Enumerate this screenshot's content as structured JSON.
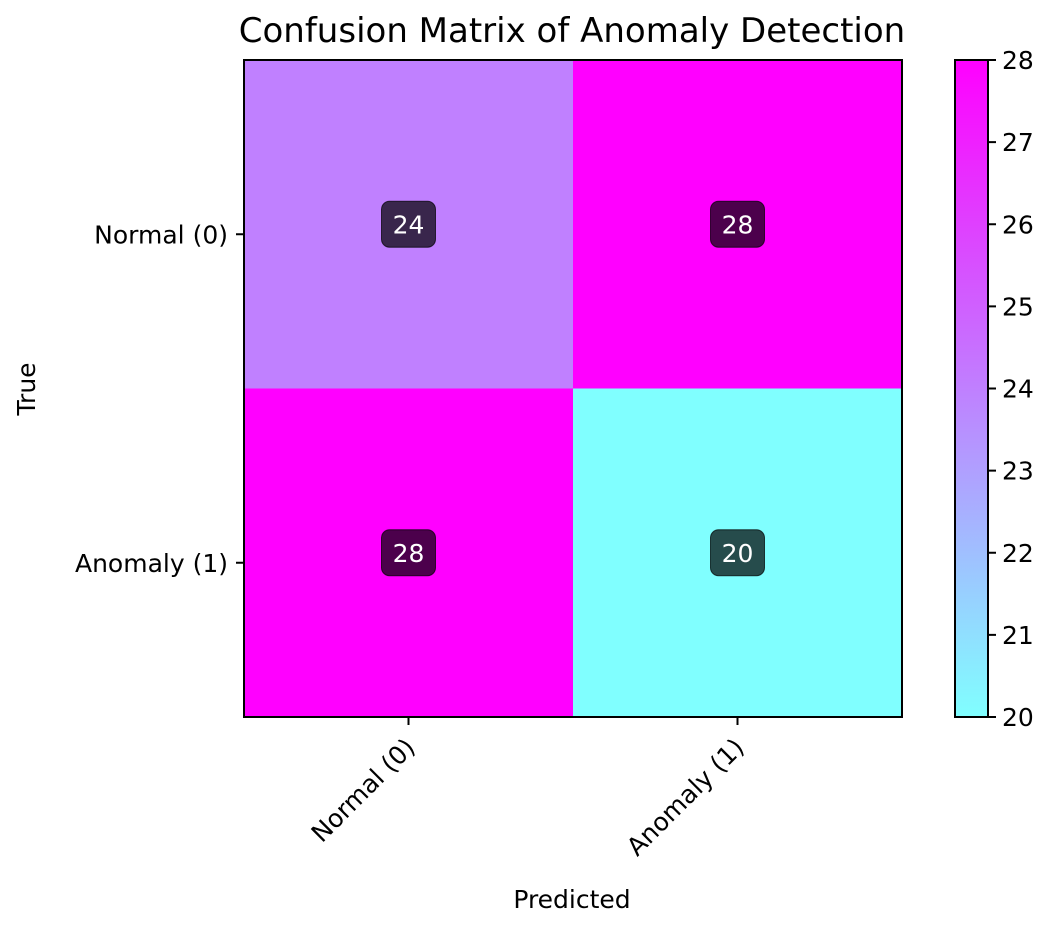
{
  "chart_data": {
    "type": "heatmap",
    "title": "Confusion Matrix of Anomaly Detection",
    "xlabel": "Predicted",
    "ylabel": "True",
    "x_categories": [
      "Normal (0)",
      "Anomaly (1)"
    ],
    "y_categories": [
      "Normal (0)",
      "Anomaly (1)"
    ],
    "values": [
      [
        24,
        28
      ],
      [
        28,
        20
      ]
    ],
    "colorbar": {
      "range": [
        20,
        28
      ],
      "ticks": [
        20,
        21,
        22,
        23,
        24,
        25,
        26,
        27,
        28
      ],
      "colormap": "cool",
      "low_color": "#80ffff",
      "high_color": "#ff00ff"
    },
    "annotation_box_color": "#000000",
    "grid": false
  }
}
